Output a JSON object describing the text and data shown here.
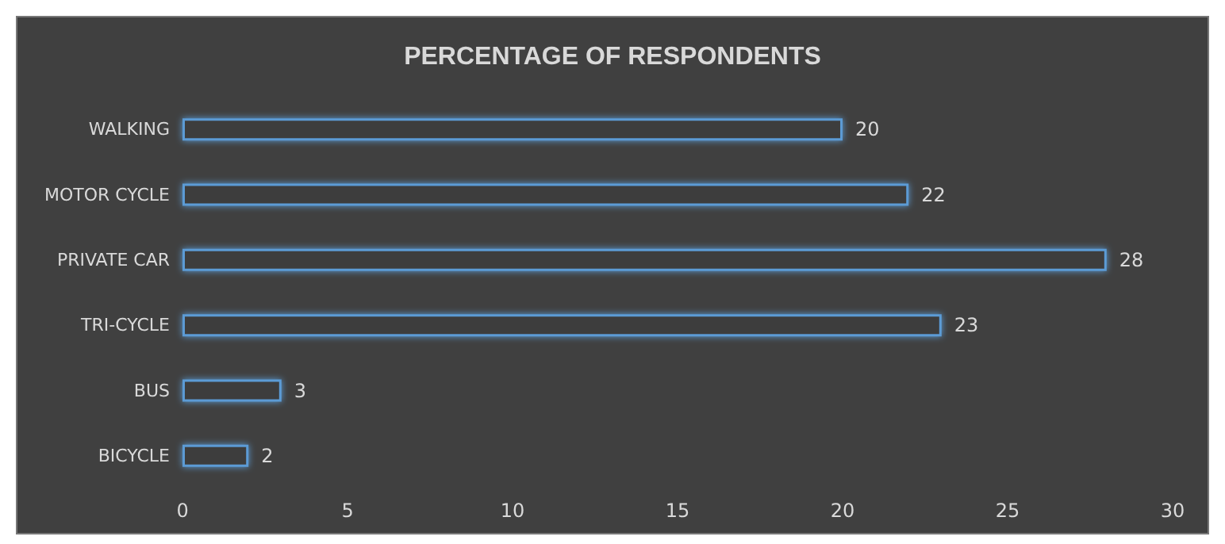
{
  "chart_data": {
    "type": "bar",
    "orientation": "horizontal",
    "title": "PERCENTAGE OF RESPONDENTS",
    "categories": [
      "WALKING",
      "MOTOR CYCLE",
      "PRIVATE CAR",
      "TRI-CYCLE",
      "BUS",
      "BICYCLE"
    ],
    "values": [
      20,
      22,
      28,
      23,
      3,
      2
    ],
    "color": "#5b9bd5",
    "xlim": [
      0,
      30
    ],
    "xticks": [
      0,
      5,
      10,
      15,
      20,
      25,
      30
    ],
    "grid": false,
    "data_labels": true
  }
}
